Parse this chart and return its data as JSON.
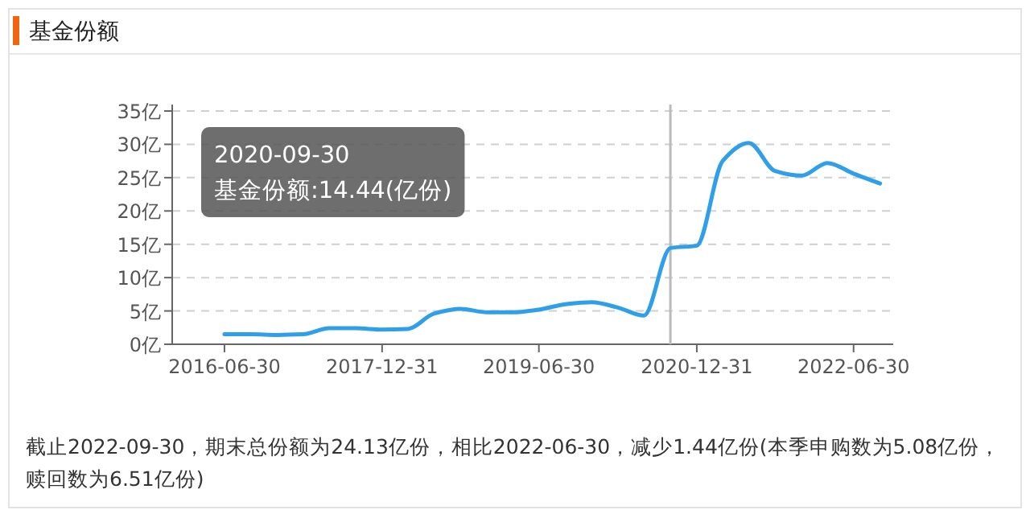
{
  "chart_data": {
    "type": "line",
    "title": "基金份额",
    "x": [
      "2016-06-30",
      "2016-09-30",
      "2016-12-31",
      "2017-03-31",
      "2017-06-30",
      "2017-09-30",
      "2017-12-31",
      "2018-03-31",
      "2018-06-30",
      "2018-09-30",
      "2018-12-31",
      "2019-03-31",
      "2019-06-30",
      "2019-09-30",
      "2019-12-31",
      "2020-03-31",
      "2020-06-30",
      "2020-09-30",
      "2020-12-31",
      "2021-03-31",
      "2021-06-30",
      "2021-09-30",
      "2021-12-31",
      "2022-03-31",
      "2022-06-30",
      "2022-09-30"
    ],
    "series": [
      {
        "color": "#2e9fe8",
        "values": [
          1.5,
          1.5,
          1.4,
          1.5,
          2.4,
          2.4,
          2.2,
          2.3,
          4.6,
          5.3,
          4.8,
          4.8,
          5.2,
          6.0,
          6.3,
          5.5,
          4.3,
          14.44,
          14.8,
          27.5,
          30.2,
          26.0,
          25.3,
          27.2,
          25.6,
          24.13
        ]
      }
    ],
    "xlim": [
      "2015-12-31",
      "2022-11-15"
    ],
    "xticks": [
      "2016-06-30",
      "2017-12-31",
      "2019-06-30",
      "2020-12-31",
      "2022-06-30"
    ],
    "ylim": [
      0,
      35
    ],
    "yticks": [
      {
        "value": 0,
        "label": "0亿"
      },
      {
        "value": 5,
        "label": "5亿"
      },
      {
        "value": 10,
        "label": "10亿"
      },
      {
        "value": 15,
        "label": "15亿"
      },
      {
        "value": 20,
        "label": "20亿"
      },
      {
        "value": 25,
        "label": "25亿"
      },
      {
        "value": 30,
        "label": "30亿"
      },
      {
        "value": 35,
        "label": "35亿"
      }
    ],
    "grid": "y",
    "marker": "none",
    "line_style": "solid",
    "ref_lines": [
      {
        "axis": "x",
        "value": "2020-09-30",
        "color": "#bbbbbb"
      }
    ],
    "annotations": [
      "2020-09-30",
      "基金份额:14.44(亿份)",
      "截止2022-09-30，期末总份额为24.13亿份，相比2022-06-30，减少1.44亿份(本季申购数为5.08亿份，赎回数为6.51亿份)"
    ]
  }
}
